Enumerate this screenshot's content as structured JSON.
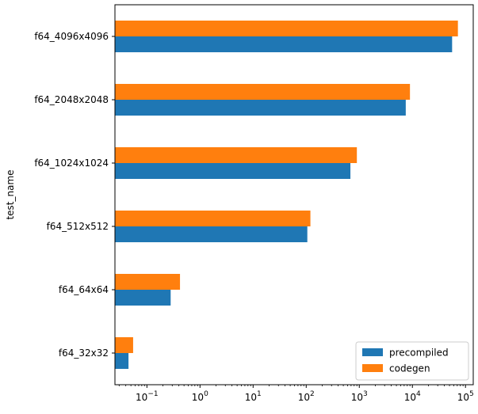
{
  "chart_data": {
    "type": "bar",
    "orientation": "horizontal",
    "title": "",
    "xlabel": "",
    "ylabel": "test_name",
    "x_scale": "log",
    "xlim": [
      0.025,
      140000
    ],
    "grid": false,
    "legend_position": "lower-right",
    "categories": [
      "f64_32x32",
      "f64_64x64",
      "f64_512x512",
      "f64_1024x1024",
      "f64_2048x2048",
      "f64_4096x4096"
    ],
    "series": [
      {
        "name": "precompiled",
        "color": "#1f77b4",
        "values": [
          0.045,
          0.28,
          105,
          680,
          7500,
          56000
        ]
      },
      {
        "name": "codegen",
        "color": "#ff7f0e",
        "values": [
          0.055,
          0.42,
          120,
          900,
          9000,
          72000
        ]
      }
    ],
    "x_ticks": [
      {
        "value": 0.1,
        "base": "10",
        "exp": "−1"
      },
      {
        "value": 1,
        "base": "10",
        "exp": "0"
      },
      {
        "value": 10,
        "base": "10",
        "exp": "1"
      },
      {
        "value": 100,
        "base": "10",
        "exp": "2"
      },
      {
        "value": 1000,
        "base": "10",
        "exp": "3"
      },
      {
        "value": 10000,
        "base": "10",
        "exp": "4"
      },
      {
        "value": 100000,
        "base": "10",
        "exp": "5"
      }
    ]
  }
}
